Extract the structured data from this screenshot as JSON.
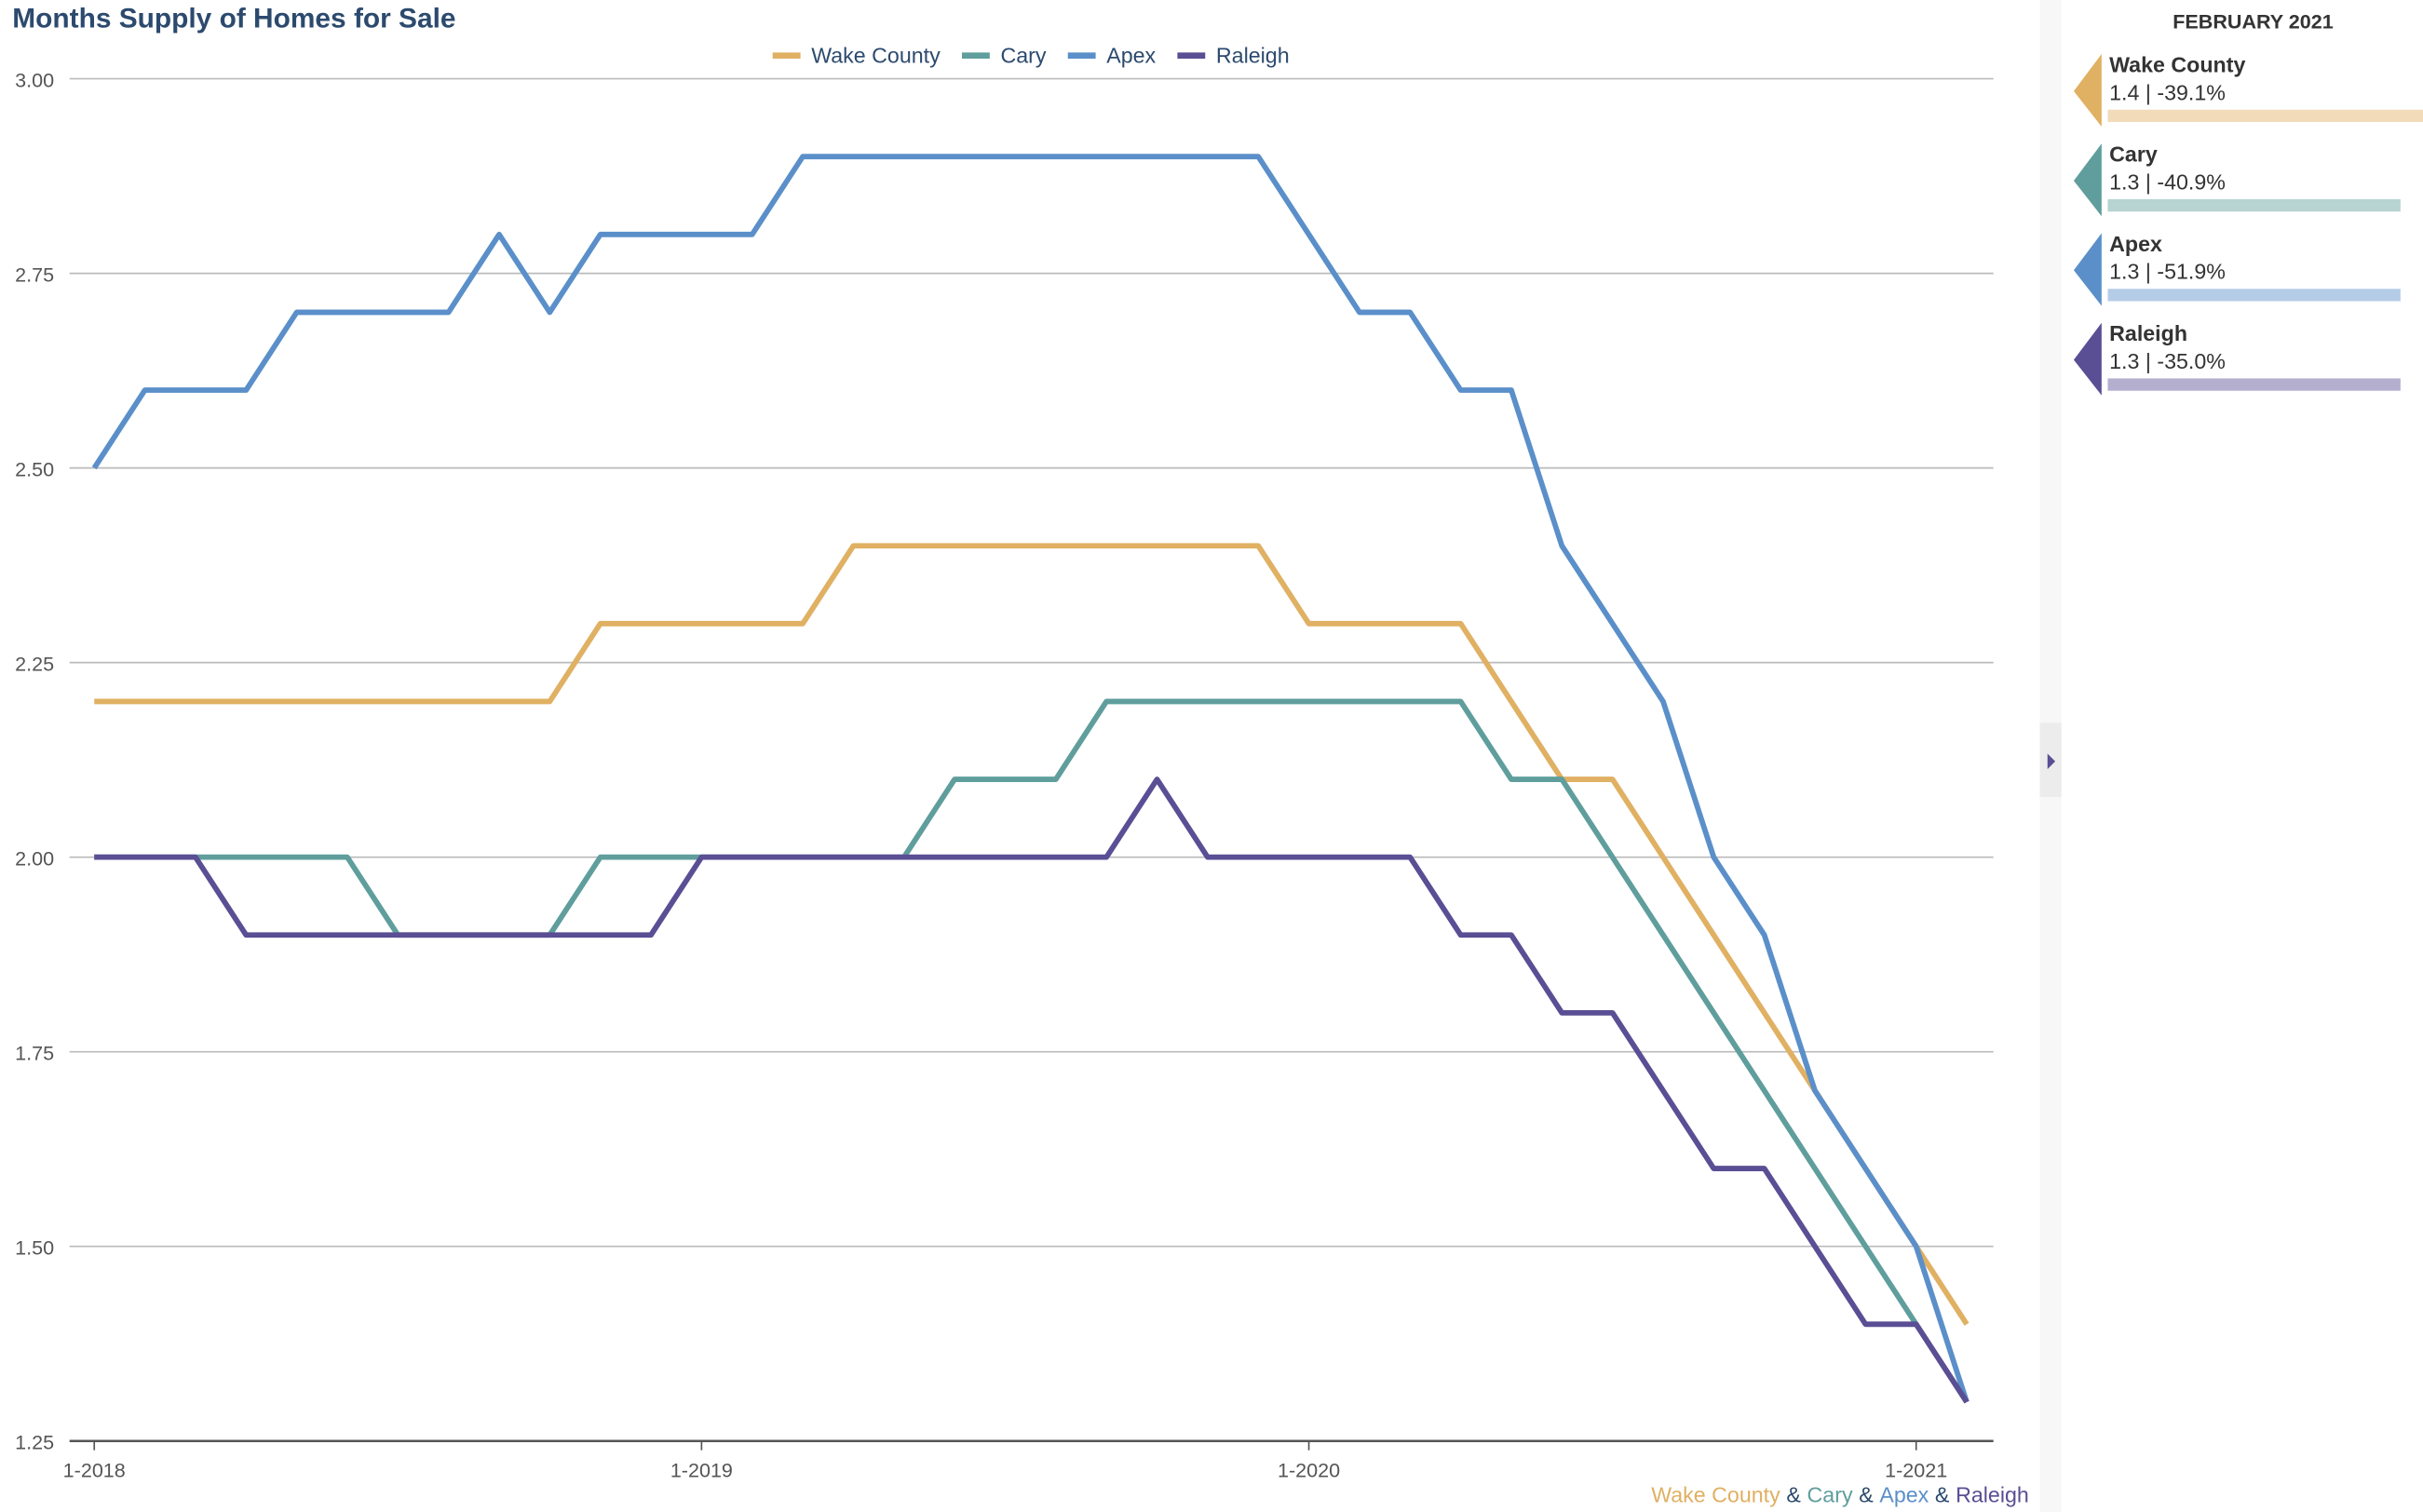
{
  "chart_data": {
    "type": "line",
    "title": "Months Supply of Homes for Sale",
    "categories": [
      "1-2018",
      null,
      null,
      null,
      null,
      null,
      null,
      null,
      null,
      null,
      null,
      null,
      "1-2019",
      null,
      null,
      null,
      null,
      null,
      null,
      null,
      null,
      null,
      null,
      null,
      "1-2020",
      null,
      null,
      null,
      null,
      null,
      null,
      null,
      null,
      null,
      null,
      null,
      "1-2021",
      null
    ],
    "series": [
      {
        "name": "Wake County",
        "color": "#e0b063",
        "values": [
          2.2,
          2.2,
          2.2,
          2.2,
          2.2,
          2.2,
          2.2,
          2.2,
          2.2,
          2.2,
          2.3,
          2.3,
          2.3,
          2.3,
          2.3,
          2.4,
          2.4,
          2.4,
          2.4,
          2.4,
          2.4,
          2.4,
          2.4,
          2.4,
          2.3,
          2.3,
          2.3,
          2.3,
          2.2,
          2.1,
          2.1,
          2.0,
          1.9,
          1.8,
          1.7,
          1.6,
          1.5,
          1.4
        ]
      },
      {
        "name": "Cary",
        "color": "#5f9e9c",
        "values": [
          2.0,
          2.0,
          2.0,
          2.0,
          2.0,
          2.0,
          1.9,
          1.9,
          1.9,
          1.9,
          2.0,
          2.0,
          2.0,
          2.0,
          2.0,
          2.0,
          2.0,
          2.1,
          2.1,
          2.1,
          2.2,
          2.2,
          2.2,
          2.2,
          2.2,
          2.2,
          2.2,
          2.2,
          2.1,
          2.1,
          2.0,
          1.9,
          1.8,
          1.7,
          1.6,
          1.5,
          1.4,
          1.3
        ]
      },
      {
        "name": "Apex",
        "color": "#5b8fc9",
        "values": [
          2.5,
          2.6,
          2.6,
          2.6,
          2.7,
          2.7,
          2.7,
          2.7,
          2.8,
          2.7,
          2.8,
          2.8,
          2.8,
          2.8,
          2.9,
          2.9,
          2.9,
          2.9,
          2.9,
          2.9,
          2.9,
          2.9,
          2.9,
          2.9,
          2.8,
          2.7,
          2.7,
          2.6,
          2.6,
          2.4,
          2.3,
          2.2,
          2.0,
          1.9,
          1.7,
          1.6,
          1.5,
          1.3
        ]
      },
      {
        "name": "Raleigh",
        "color": "#5a4e94",
        "values": [
          2.0,
          2.0,
          2.0,
          1.9,
          1.9,
          1.9,
          1.9,
          1.9,
          1.9,
          1.9,
          1.9,
          1.9,
          2.0,
          2.0,
          2.0,
          2.0,
          2.0,
          2.0,
          2.0,
          2.0,
          2.0,
          2.1,
          2.0,
          2.0,
          2.0,
          2.0,
          2.0,
          1.9,
          1.9,
          1.8,
          1.8,
          1.7,
          1.6,
          1.6,
          1.5,
          1.4,
          1.4,
          1.3
        ]
      }
    ],
    "ylim": [
      1.25,
      3.0
    ],
    "yticks": [
      1.25,
      {
        "value": 1.5,
        "label": "1.50"
      },
      1.75,
      {
        "value": 2.0,
        "label": "2.00"
      },
      2.25,
      {
        "value": 2.5,
        "label": "2.50"
      },
      2.75,
      {
        "value": 3.0,
        "label": "3.00"
      }
    ],
    "grid": true,
    "legend": "top"
  },
  "sidebar": {
    "title": "FEBRUARY 2021",
    "items": [
      {
        "name": "Wake County",
        "value": 1.4,
        "value_label": "1.4 | -39.1%"
      },
      {
        "name": "Cary",
        "value": 1.3,
        "value_label": "1.3 | -40.9%"
      },
      {
        "name": "Apex",
        "value": 1.3,
        "value_label": "1.3 | -51.9%"
      },
      {
        "name": "Raleigh",
        "value": 1.3,
        "value_label": "1.3 | -35.0%"
      }
    ]
  },
  "footer": {
    "joiner": "&"
  }
}
